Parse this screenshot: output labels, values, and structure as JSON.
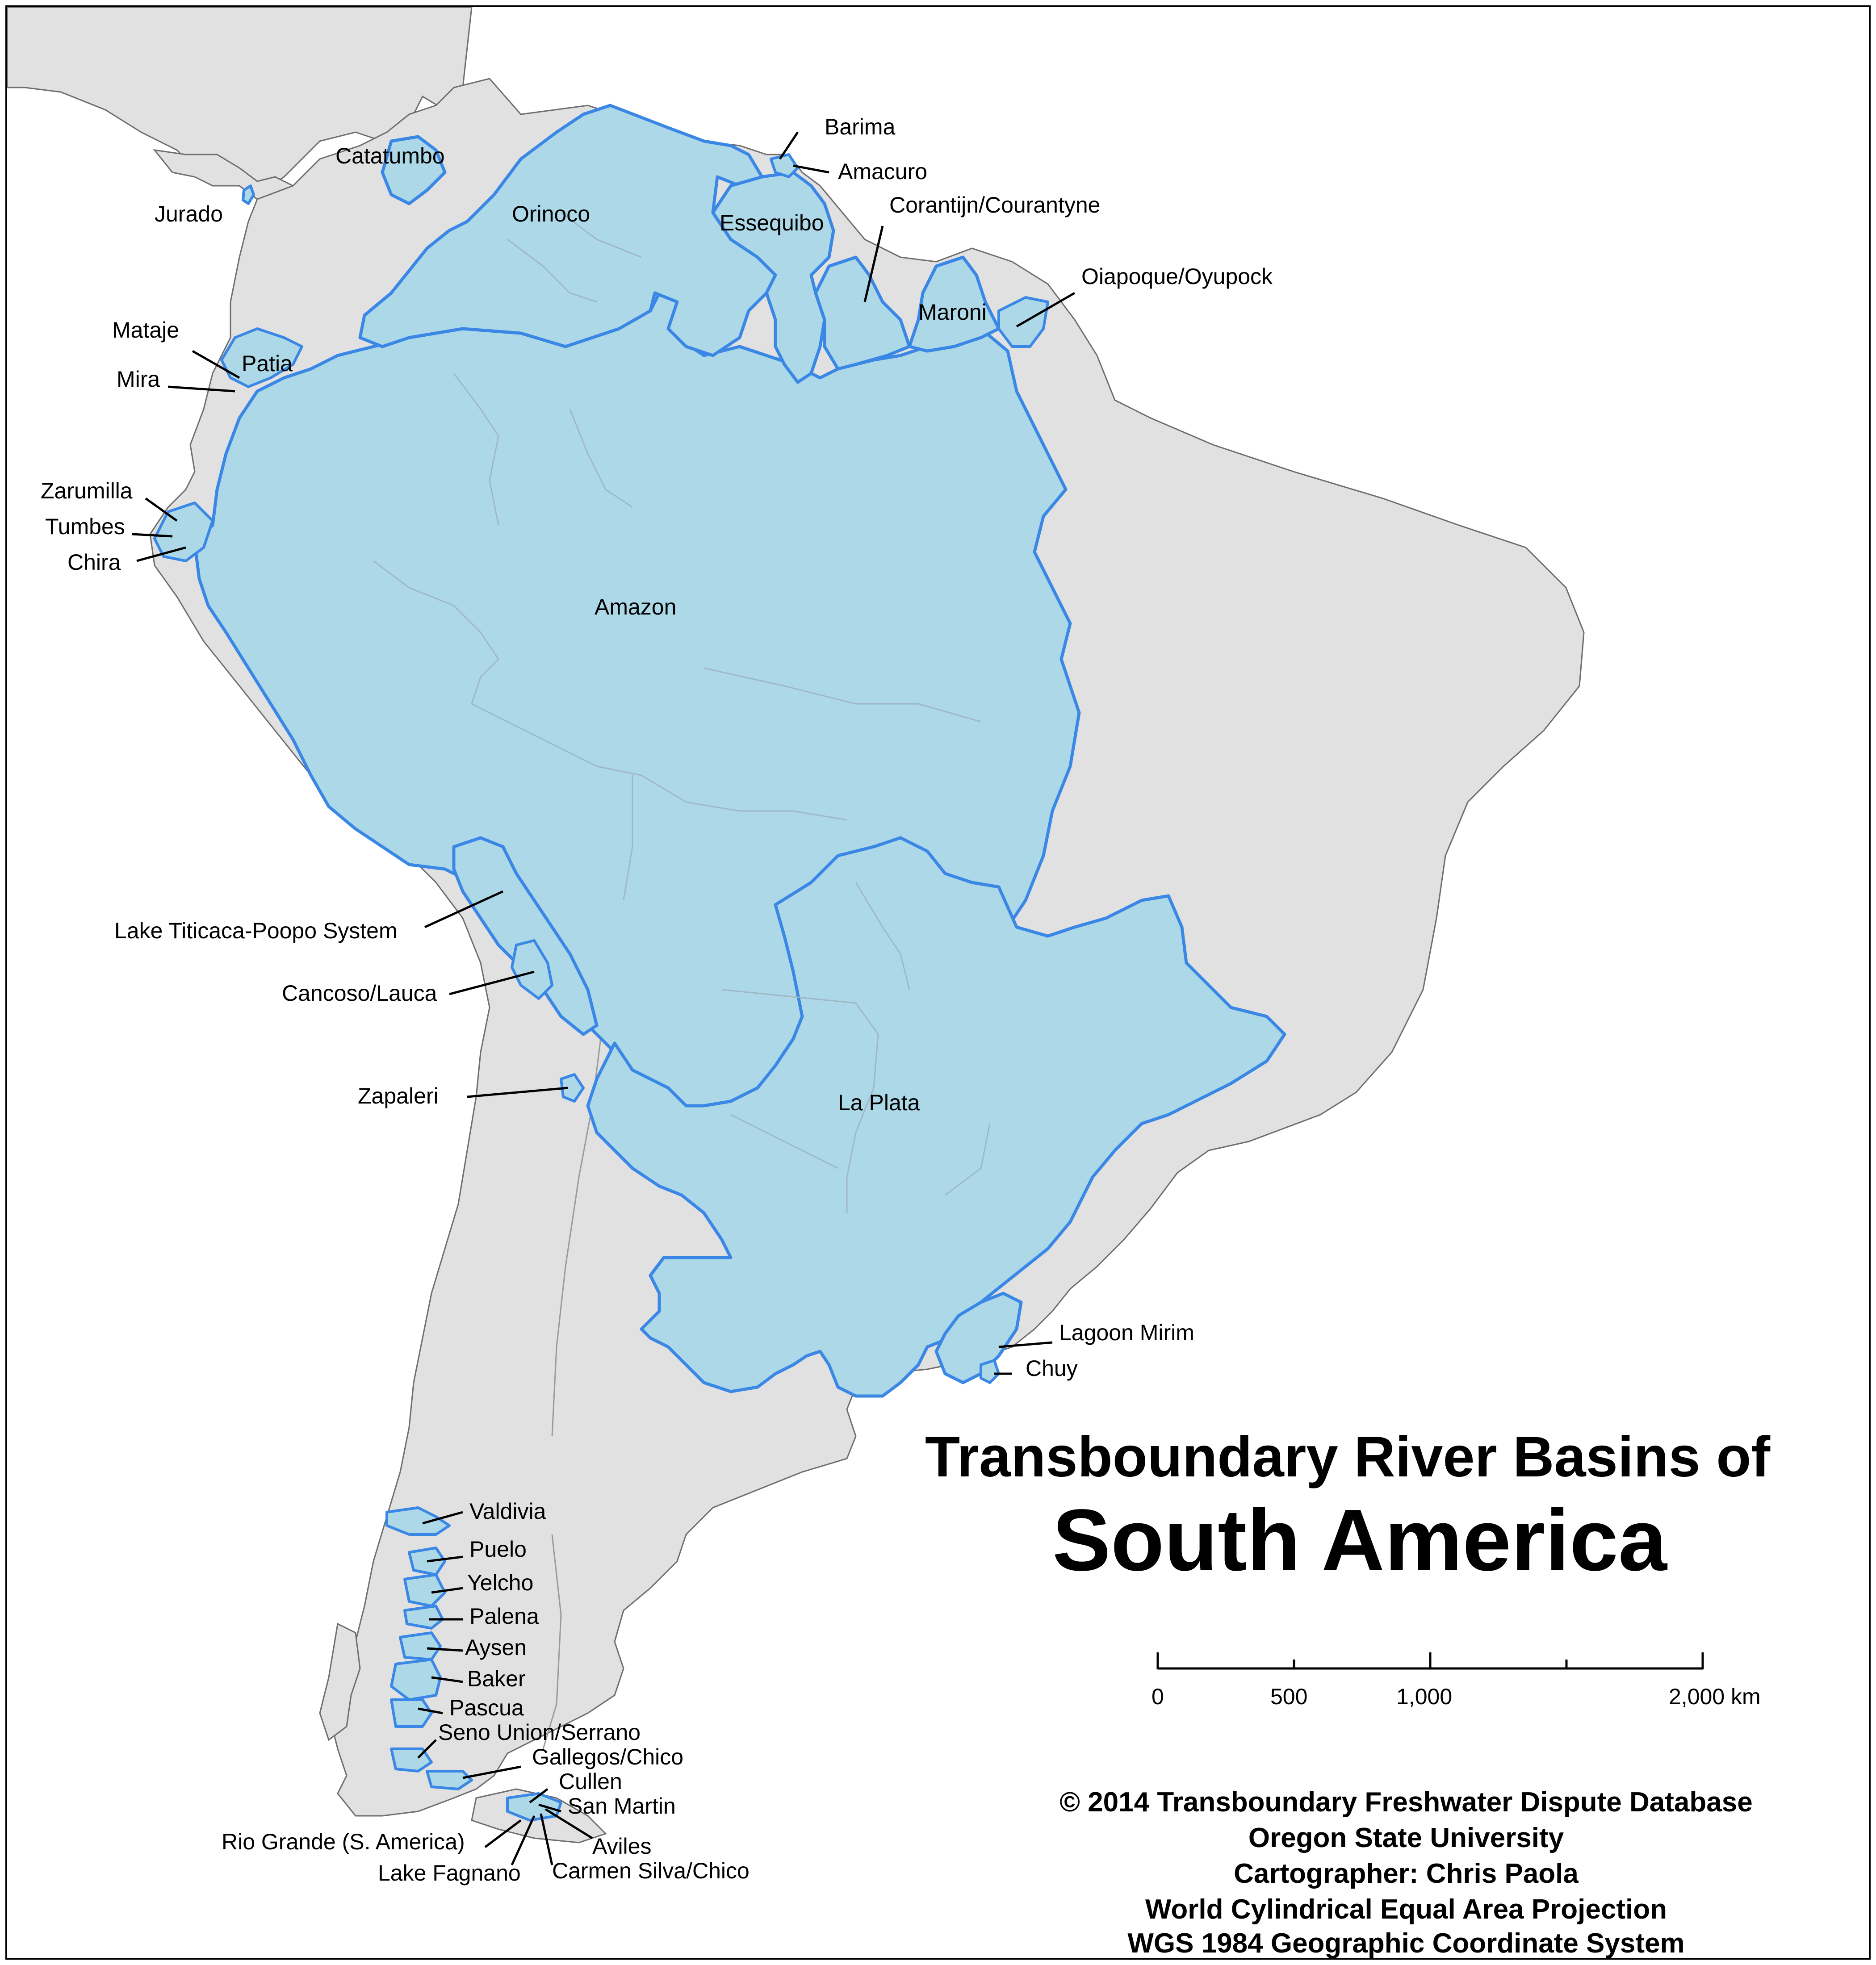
{
  "title": {
    "line1": "Transboundary River Basins of",
    "line2": "South America"
  },
  "credits": [
    "© 2014 Transboundary Freshwater Dispute Database",
    "Oregon State University",
    "Cartographer: Chris Paola",
    "World Cylindrical Equal Area Projection",
    "WGS 1984 Geographic Coordinate System"
  ],
  "scale_bar": {
    "ticks": [
      "0",
      "500",
      "1,000",
      "2,000 km"
    ]
  },
  "basins": {
    "amazon": "Amazon",
    "orinoco": "Orinoco",
    "la_plata": "La Plata",
    "catatumbo": "Catatumbo",
    "essequibo": "Essequibo",
    "maroni": "Maroni",
    "patia": "Patia",
    "jurado": "Jurado",
    "barima": "Barima",
    "amacuro": "Amacuro",
    "corantijn": "Corantijn/Courantyne",
    "oiapoque": "Oiapoque/Oyupock",
    "mataje": "Mataje",
    "mira": "Mira",
    "zarumilla": "Zarumilla",
    "tumbes": "Tumbes",
    "chira": "Chira",
    "titicaca": "Lake Titicaca-Poopo System",
    "cancoso": "Cancoso/Lauca",
    "zapaleri": "Zapaleri",
    "lagoon_mirim": "Lagoon Mirim",
    "chuy": "Chuy",
    "valdivia": "Valdivia",
    "puelo": "Puelo",
    "yelcho": "Yelcho",
    "palena": "Palena",
    "aysen": "Aysen",
    "baker": "Baker",
    "pascua": "Pascua",
    "seno_union": "Seno Union/Serrano",
    "gallegos": "Gallegos/Chico",
    "cullen": "Cullen",
    "san_martin": "San Martin",
    "aviles": "Aviles",
    "rio_grande": "Rio Grande (S. America)",
    "lake_fagnano": "Lake Fagnano",
    "carmen_silva": "Carmen Silva/Chico"
  },
  "colors": {
    "land": "#e1e1e1",
    "basin_fill": "#add8e8",
    "basin_outline": "#3a87e6",
    "background": "#ffffff"
  }
}
